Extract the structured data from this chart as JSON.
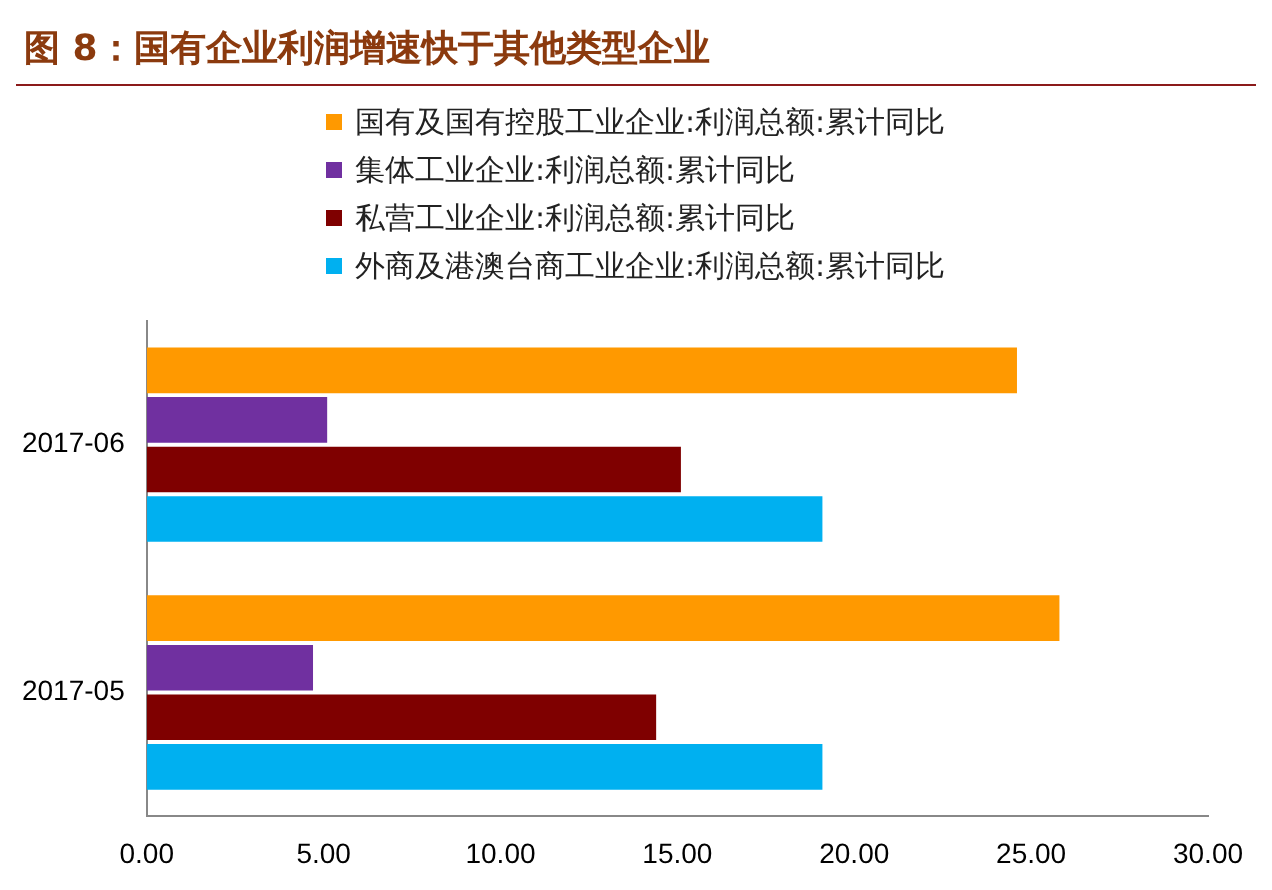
{
  "chart_data": {
    "type": "bar",
    "orientation": "horizontal",
    "title": "图 8：国有企业利润增速快于其他类型企业",
    "categories": [
      "2017-06",
      "2017-05"
    ],
    "series": [
      {
        "name": "国有及国有控股工业企业:利润总额:累计同比",
        "color": "#ff9900",
        "values": [
          24.6,
          25.8
        ]
      },
      {
        "name": "集体工业企业:利润总额:累计同比",
        "color": "#7030a0",
        "values": [
          5.1,
          4.7
        ]
      },
      {
        "name": "私营工业企业:利润总额:累计同比",
        "color": "#7f0000",
        "values": [
          15.1,
          14.4
        ]
      },
      {
        "name": "外商及港澳台商工业企业:利润总额:累计同比",
        "color": "#00b0f0",
        "values": [
          19.1,
          19.1
        ]
      }
    ],
    "xlim": [
      0,
      30
    ],
    "xticks": [
      {
        "value": 0,
        "label": "0.00"
      },
      {
        "value": 5,
        "label": "5.00"
      },
      {
        "value": 10,
        "label": "10.00"
      },
      {
        "value": 15,
        "label": "15.00"
      },
      {
        "value": 20,
        "label": "20.00"
      },
      {
        "value": 25,
        "label": "25.00"
      },
      {
        "value": 30,
        "label": "30.00"
      }
    ],
    "grid": false,
    "legend": "top"
  }
}
